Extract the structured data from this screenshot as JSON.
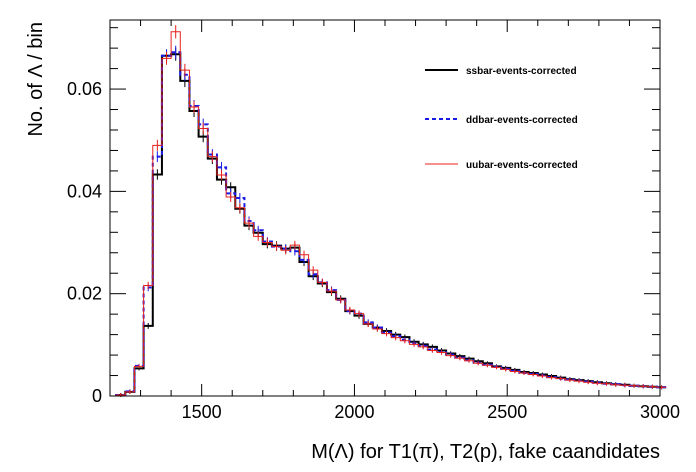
{
  "chart_data": {
    "type": "histogram-step",
    "xlabel": "M(Λ) for T1(π), T2(p), fake caandidates",
    "ylabel": "No. of Λ / bin",
    "xlim": [
      1200,
      3000
    ],
    "ylim": [
      0,
      0.0735
    ],
    "x_ticks": [
      1500,
      2000,
      2500,
      3000
    ],
    "y_ticks": [
      0,
      0.02,
      0.04,
      0.06
    ],
    "y_tick_labels": [
      "0",
      "0.02",
      "0.04",
      "0.06"
    ],
    "bin_width": 30,
    "bin_start": 1220,
    "legend_position": "top-right",
    "grid": false,
    "series": [
      {
        "name": "ssbar-events-corrected",
        "color": "#000000",
        "style": "solid",
        "values": [
          0.0002,
          0.0008,
          0.0054,
          0.0137,
          0.0433,
          0.0665,
          0.0668,
          0.0616,
          0.0557,
          0.0507,
          0.0464,
          0.0423,
          0.0408,
          0.0366,
          0.0333,
          0.0319,
          0.0297,
          0.0294,
          0.0288,
          0.029,
          0.0262,
          0.0234,
          0.022,
          0.0203,
          0.019,
          0.0166,
          0.0157,
          0.0141,
          0.0134,
          0.0127,
          0.012,
          0.0115,
          0.0106,
          0.0101,
          0.0096,
          0.0089,
          0.0083,
          0.0078,
          0.0073,
          0.0068,
          0.0064,
          0.0058,
          0.0055,
          0.0051,
          0.0047,
          0.0045,
          0.0042,
          0.0039,
          0.0036,
          0.0033,
          0.0031,
          0.0029,
          0.0027,
          0.0025,
          0.0023,
          0.0022,
          0.002,
          0.0019,
          0.0018,
          0.0017
        ]
      },
      {
        "name": "ddbar-events-corrected",
        "color": "#1a1ae6",
        "style": "dashed",
        "values": [
          0.0002,
          0.0009,
          0.0059,
          0.0212,
          0.0468,
          0.0665,
          0.0672,
          0.0628,
          0.0567,
          0.0531,
          0.0472,
          0.0447,
          0.0396,
          0.0387,
          0.0342,
          0.0324,
          0.0302,
          0.0292,
          0.0288,
          0.0283,
          0.0266,
          0.0238,
          0.0222,
          0.0207,
          0.0188,
          0.0166,
          0.0161,
          0.0144,
          0.0134,
          0.0124,
          0.0117,
          0.011,
          0.0103,
          0.0098,
          0.0091,
          0.0086,
          0.0081,
          0.0075,
          0.007,
          0.0065,
          0.0061,
          0.0057,
          0.0053,
          0.0049,
          0.0045,
          0.0043,
          0.004,
          0.0037,
          0.0034,
          0.0032,
          0.003,
          0.0028,
          0.0026,
          0.0024,
          0.0023,
          0.0021,
          0.002,
          0.0019,
          0.0018,
          0.0017
        ]
      },
      {
        "name": "uubar-events-corrected",
        "color": "#e8211b",
        "style": "solid",
        "values": [
          0.0002,
          0.0008,
          0.0058,
          0.0216,
          0.049,
          0.066,
          0.0712,
          0.0637,
          0.0565,
          0.0523,
          0.0468,
          0.0432,
          0.0389,
          0.0368,
          0.0338,
          0.0312,
          0.03,
          0.0292,
          0.0285,
          0.0295,
          0.0276,
          0.0246,
          0.0222,
          0.0205,
          0.0188,
          0.0168,
          0.0161,
          0.0141,
          0.0131,
          0.0122,
          0.0114,
          0.0108,
          0.0101,
          0.0096,
          0.0089,
          0.0085,
          0.0079,
          0.0074,
          0.0069,
          0.0064,
          0.006,
          0.0056,
          0.0052,
          0.0048,
          0.0045,
          0.0042,
          0.0039,
          0.0036,
          0.0034,
          0.0031,
          0.0029,
          0.0027,
          0.0025,
          0.0024,
          0.0022,
          0.0021,
          0.002,
          0.0019,
          0.0018,
          0.0017
        ]
      }
    ]
  }
}
